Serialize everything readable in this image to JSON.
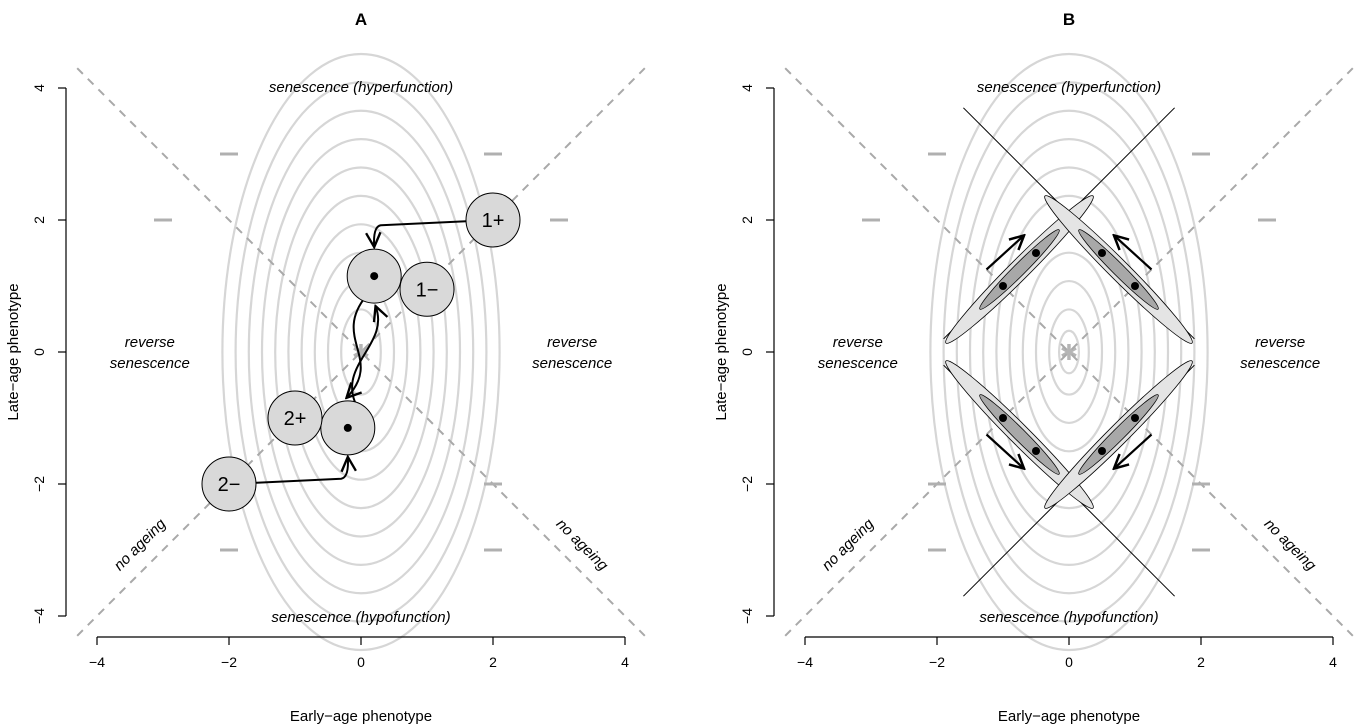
{
  "chart_data": [
    {
      "type": "scatter",
      "title": "A",
      "xlabel": "Early−age phenotype",
      "ylabel": "Late−age phenotype",
      "xlim": [
        -4,
        4
      ],
      "ylim": [
        -4,
        4
      ],
      "xticks": [
        "−4",
        "−2",
        "0",
        "2",
        "4"
      ],
      "yticks": [
        "−4",
        "−2",
        "0",
        "2",
        "4"
      ],
      "region_labels": {
        "top": "senescence (hyperfunction)",
        "bottom": "senescence (hypofunction)",
        "left_1": "reverse",
        "left_2": "senescence",
        "right_1": "reverse",
        "right_2": "senescence",
        "diag_left": "no ageing",
        "diag_right": "no ageing"
      },
      "optimum": {
        "x": 0,
        "y": 0,
        "symbol": "✱"
      },
      "fitness_contours": {
        "x_radius": [
          0.3,
          0.5,
          0.7,
          0.9,
          1.1,
          1.3,
          1.5,
          1.7,
          1.9,
          2.1
        ],
        "aspect_y_over_x": 2.15
      },
      "marker_dashes": [
        {
          "x": -2,
          "y": 3
        },
        {
          "x": 2,
          "y": 3
        },
        {
          "x": -3,
          "y": 2
        },
        {
          "x": 3,
          "y": 2
        },
        {
          "x": -2,
          "y": -2
        },
        {
          "x": 2,
          "y": -2
        },
        {
          "x": -2,
          "y": -3
        },
        {
          "x": 2,
          "y": -3
        }
      ],
      "nodes": [
        {
          "label": "1+",
          "x": 2,
          "y": 2
        },
        {
          "label": "1−",
          "x": 1,
          "y": 0.95
        },
        {
          "label": "2+",
          "x": -1,
          "y": -1
        },
        {
          "label": "2−",
          "x": -2,
          "y": -2
        }
      ],
      "equilibria": [
        {
          "x": 0.2,
          "y": 1.15
        },
        {
          "x": -0.2,
          "y": -1.15
        }
      ],
      "paths": [
        {
          "from": "1+",
          "to": "upper equilibrium"
        },
        {
          "from": "1−",
          "to": "upper equilibrium"
        },
        {
          "from": "2+",
          "to": "lower equilibrium"
        },
        {
          "from": "2−",
          "to": "lower equilibrium"
        }
      ]
    },
    {
      "type": "scatter",
      "title": "B",
      "xlabel": "Early−age phenotype",
      "ylabel": "Late−age phenotype",
      "xlim": [
        -4,
        4
      ],
      "ylim": [
        -4,
        4
      ],
      "xticks": [
        "−4",
        "−2",
        "0",
        "2",
        "4"
      ],
      "yticks": [
        "−4",
        "−2",
        "0",
        "2",
        "4"
      ],
      "region_labels": {
        "top": "senescence (hyperfunction)",
        "bottom": "senescence (hypofunction)",
        "left_1": "reverse",
        "left_2": "senescence",
        "right_1": "reverse",
        "right_2": "senescence",
        "diag_left": "no ageing",
        "diag_right": "no ageing"
      },
      "optimum": {
        "x": 0,
        "y": 0,
        "symbol": "✱"
      },
      "fitness_contours": {
        "x_radius": [
          0.15,
          0.3,
          0.5,
          0.7,
          0.9,
          1.1,
          1.3,
          1.5,
          1.7,
          1.9,
          2.1
        ],
        "aspect_y_over_x": 2.15
      },
      "marker_dashes": [
        {
          "x": -2,
          "y": 3
        },
        {
          "x": 2,
          "y": 3
        },
        {
          "x": -3,
          "y": 2
        },
        {
          "x": 3,
          "y": 2
        },
        {
          "x": -2,
          "y": -2
        },
        {
          "x": 2,
          "y": -2
        },
        {
          "x": -2,
          "y": -3
        },
        {
          "x": 2,
          "y": -3
        }
      ],
      "constraint_lines": [
        {
          "slope": 1,
          "intercept": 2.1
        },
        {
          "slope": -1,
          "intercept": 2.1
        },
        {
          "slope": 1,
          "intercept": -2.1
        },
        {
          "slope": -1,
          "intercept": -2.1
        }
      ],
      "points": [
        {
          "x": -1,
          "y": 1
        },
        {
          "x": -0.5,
          "y": 1.5
        },
        {
          "x": 0.5,
          "y": 1.5
        },
        {
          "x": 1,
          "y": 1
        },
        {
          "x": -1,
          "y": -1
        },
        {
          "x": -0.5,
          "y": -1.5
        },
        {
          "x": 0.5,
          "y": -1.5
        },
        {
          "x": 1,
          "y": -1
        }
      ],
      "arrows": [
        {
          "x0": -1.25,
          "y0": 1.25,
          "x1": -0.7,
          "y1": 1.75
        },
        {
          "x0": 1.25,
          "y0": 1.25,
          "x1": 0.7,
          "y1": 1.75
        },
        {
          "x0": -1.25,
          "y0": -1.25,
          "x1": -0.7,
          "y1": -1.75
        },
        {
          "x0": 1.25,
          "y0": -1.25,
          "x1": 0.7,
          "y1": -1.75
        }
      ]
    }
  ]
}
